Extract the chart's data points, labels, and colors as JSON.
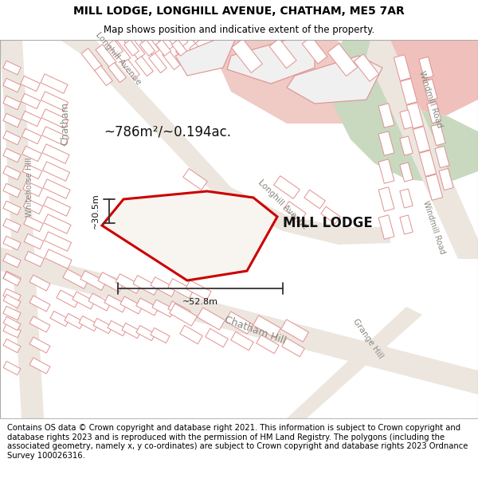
{
  "title": "MILL LODGE, LONGHILL AVENUE, CHATHAM, ME5 7AR",
  "subtitle": "Map shows position and indicative extent of the property.",
  "footer": "Contains OS data © Crown copyright and database right 2021. This information is subject to Crown copyright and database rights 2023 and is reproduced with the permission of HM Land Registry. The polygons (including the associated geometry, namely x, y co-ordinates) are subject to Crown copyright and database rights 2023 Ordnance Survey 100026316.",
  "area_label": "~786m²/~0.194ac.",
  "width_label": "~52.8m",
  "height_label": "~30.5m",
  "property_label": "MILL LODGE",
  "map_bg": "#f7f2ee",
  "road_fill": "#ede8e2",
  "building_fill": "#ffffff",
  "building_edge": "#e8a0a0",
  "green_fill": "#c8d8c0",
  "pink_fill": "#f0c8c4",
  "red_poly": "#cc0000",
  "prop_fill": "#f8f4f0",
  "title_fontsize": 10,
  "subtitle_fontsize": 8.5,
  "footer_fontsize": 7.2
}
